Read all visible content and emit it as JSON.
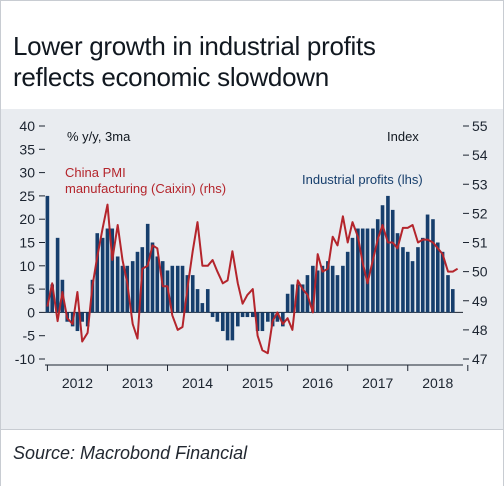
{
  "title_lines": [
    "Lower growth in industrial profits",
    "reflects economic slowdown"
  ],
  "source": "Source: Macrobond Financial",
  "chart_data": {
    "type": "bar+line",
    "title": "Lower growth in industrial profits reflects economic slowdown",
    "left_axis_unit": "% y/y, 3ma",
    "right_axis_unit": "Index",
    "left_ylim": [
      -10,
      40
    ],
    "left_ticks": [
      "-10",
      "-5",
      "0",
      "5",
      "10",
      "15",
      "20",
      "25",
      "30",
      "35",
      "40"
    ],
    "right_ylim": [
      47,
      55
    ],
    "right_ticks": [
      "47",
      "48",
      "49",
      "50",
      "51",
      "52",
      "53",
      "54",
      "55"
    ],
    "x_tick_labels": [
      "2012",
      "2013",
      "2014",
      "2015",
      "2016",
      "2017",
      "2018"
    ],
    "x_range": [
      2011.96,
      2018.92
    ],
    "colors": {
      "bars": "#163e6c",
      "line": "#b4252c"
    },
    "series": [
      {
        "name": "Industrial profits (lhs)",
        "type": "bar",
        "axis": "left",
        "x": [
          2012.0,
          2012.08,
          2012.17,
          2012.25,
          2012.33,
          2012.42,
          2012.5,
          2012.58,
          2012.67,
          2012.75,
          2012.83,
          2012.92,
          2013.0,
          2013.08,
          2013.17,
          2013.25,
          2013.33,
          2013.42,
          2013.5,
          2013.58,
          2013.67,
          2013.75,
          2013.83,
          2013.92,
          2014.0,
          2014.08,
          2014.17,
          2014.25,
          2014.33,
          2014.42,
          2014.5,
          2014.58,
          2014.67,
          2014.75,
          2014.83,
          2014.92,
          2015.0,
          2015.08,
          2015.17,
          2015.25,
          2015.33,
          2015.42,
          2015.5,
          2015.58,
          2015.67,
          2015.75,
          2015.83,
          2015.92,
          2016.0,
          2016.08,
          2016.17,
          2016.25,
          2016.33,
          2016.42,
          2016.5,
          2016.58,
          2016.67,
          2016.75,
          2016.83,
          2016.92,
          2017.0,
          2017.08,
          2017.17,
          2017.25,
          2017.33,
          2017.42,
          2017.5,
          2017.58,
          2017.67,
          2017.75,
          2017.83,
          2017.92,
          2018.0,
          2018.08,
          2018.17,
          2018.25,
          2018.33,
          2018.42,
          2018.5,
          2018.58,
          2018.67,
          2018.75
        ],
        "values": [
          25,
          6,
          16,
          7,
          -2,
          -3,
          -4,
          -2,
          -3,
          7,
          17,
          16,
          18,
          18,
          12,
          10,
          10,
          11,
          13,
          14,
          19,
          15,
          12,
          11,
          9,
          10,
          10,
          10,
          8,
          8,
          5,
          2,
          5,
          -1,
          -2,
          -4,
          -6,
          -6,
          -3,
          -1,
          -1,
          -1,
          -4,
          -4,
          -2,
          -3,
          -2,
          -3,
          4,
          6,
          6,
          6,
          8,
          10,
          9,
          10,
          11,
          10,
          8,
          10,
          13,
          16,
          18,
          18,
          18,
          18,
          20,
          23,
          25,
          22,
          17,
          14,
          13,
          11,
          14,
          16,
          21,
          20,
          15,
          13,
          8,
          5
        ]
      },
      {
        "name": "China PMI manufacturing (Caixin) (rhs)",
        "type": "line",
        "axis": "right",
        "x": [
          2012.0,
          2012.08,
          2012.17,
          2012.25,
          2012.33,
          2012.42,
          2012.5,
          2012.58,
          2012.67,
          2012.75,
          2012.83,
          2012.92,
          2013.0,
          2013.08,
          2013.17,
          2013.25,
          2013.33,
          2013.42,
          2013.5,
          2013.58,
          2013.67,
          2013.75,
          2013.83,
          2013.92,
          2014.0,
          2014.08,
          2014.17,
          2014.25,
          2014.33,
          2014.42,
          2014.5,
          2014.58,
          2014.67,
          2014.75,
          2014.83,
          2014.92,
          2015.0,
          2015.08,
          2015.17,
          2015.25,
          2015.33,
          2015.42,
          2015.5,
          2015.58,
          2015.67,
          2015.75,
          2015.83,
          2015.92,
          2016.0,
          2016.08,
          2016.17,
          2016.25,
          2016.33,
          2016.42,
          2016.5,
          2016.58,
          2016.67,
          2016.75,
          2016.83,
          2016.92,
          2017.0,
          2017.08,
          2017.17,
          2017.25,
          2017.33,
          2017.42,
          2017.5,
          2017.58,
          2017.67,
          2017.75,
          2017.83,
          2017.92,
          2018.0,
          2018.08,
          2018.17,
          2018.25,
          2018.33,
          2018.42,
          2018.5,
          2018.58,
          2018.67,
          2018.75,
          2018.83
        ],
        "values": [
          48.8,
          49.6,
          48.3,
          49.3,
          48.4,
          48.2,
          49.3,
          47.6,
          47.9,
          49.5,
          50.5,
          51.5,
          52.3,
          50.4,
          51.6,
          50.4,
          49.6,
          48.2,
          47.7,
          50.1,
          50.2,
          50.9,
          50.8,
          49.5,
          49.5,
          48.5,
          48.0,
          48.1,
          49.4,
          50.7,
          51.7,
          50.2,
          50.2,
          50.4,
          50.0,
          49.6,
          49.7,
          50.7,
          49.6,
          48.9,
          49.2,
          49.4,
          47.8,
          47.3,
          47.2,
          48.3,
          48.6,
          48.2,
          48.4,
          48.0,
          49.7,
          49.4,
          49.2,
          48.6,
          50.6,
          50.0,
          50.1,
          51.2,
          50.9,
          51.9,
          51.0,
          51.7,
          51.2,
          50.3,
          49.6,
          50.4,
          51.1,
          51.6,
          51.0,
          51.0,
          50.8,
          51.5,
          51.5,
          51.6,
          51.0,
          51.1,
          51.1,
          51.0,
          50.8,
          50.6,
          50.0,
          50.0,
          50.1
        ]
      }
    ],
    "legend": [
      {
        "text_lines": [
          "China PMI",
          "manufacturing (Caixin) (rhs)"
        ],
        "color": "#b4252c"
      },
      {
        "text_lines": [
          "Industrial profits (lhs)"
        ],
        "color": "#163e6c"
      }
    ],
    "gridlines": false
  }
}
